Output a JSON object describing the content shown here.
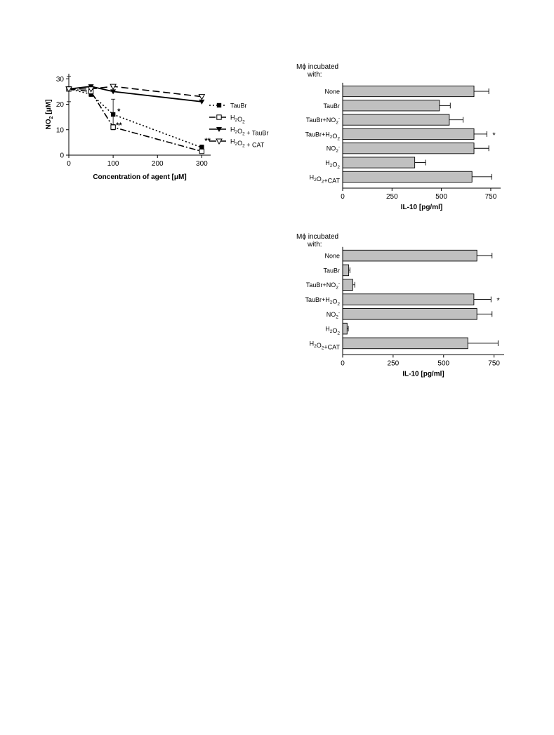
{
  "chart_data": [
    {
      "type": "line",
      "xlabel": "Concentration of agent [μM]",
      "ylabel": "NO2 [μM]",
      "ylabel_main": "NO",
      "ylabel_sub": "2",
      "ylabel_unit": " [μM]",
      "xlim": [
        0,
        320
      ],
      "ylim": [
        0,
        32
      ],
      "xticks": [
        "0",
        "100",
        "200",
        "300"
      ],
      "yticks": [
        "0",
        "10",
        "20",
        "30"
      ],
      "legend_position": "right",
      "series": [
        {
          "name": "TauBr",
          "label_parts": [
            [
              "TauBr",
              ""
            ]
          ],
          "marker": "square-filled",
          "dash": "2,3",
          "x": [
            0,
            50,
            100,
            300
          ],
          "y": [
            26,
            24,
            16,
            3
          ],
          "err": [
            5,
            1,
            6,
            1
          ],
          "annotations": [
            "",
            "",
            "*",
            "**"
          ]
        },
        {
          "name": "H2O2",
          "label_parts": [
            [
              "H",
              "2"
            ],
            [
              "O",
              "2"
            ]
          ],
          "marker": "square-open",
          "dash": "9,3,2,3",
          "x": [
            0,
            50,
            100,
            300
          ],
          "y": [
            26,
            25,
            11,
            1.5
          ],
          "err": [
            0,
            1,
            1,
            0.8
          ],
          "annotations": [
            "",
            "",
            "**",
            ""
          ]
        },
        {
          "name": "H2O2 + TauBr",
          "label_parts": [
            [
              "H",
              "2"
            ],
            [
              "O",
              "2"
            ],
            [
              " + TauBr",
              ""
            ]
          ],
          "marker": "triangle-down-filled",
          "dash": "",
          "x": [
            0,
            50,
            100,
            300
          ],
          "y": [
            26,
            27,
            25,
            21
          ],
          "err": [
            0,
            0,
            0,
            0
          ],
          "annotations": [
            "",
            "",
            "",
            ""
          ]
        },
        {
          "name": "H2O2 + CAT",
          "label_parts": [
            [
              "H",
              "2"
            ],
            [
              "O",
              "2"
            ],
            [
              " + CAT",
              ""
            ]
          ],
          "marker": "triangle-down-open",
          "dash": "10,5",
          "x": [
            0,
            50,
            100,
            300
          ],
          "y": [
            26,
            26,
            27,
            23
          ],
          "err": [
            0,
            0,
            0,
            0
          ],
          "annotations": [
            "",
            "",
            "",
            ""
          ]
        }
      ]
    },
    {
      "type": "bar",
      "orientation": "horizontal",
      "title_lines": [
        "Mϕ incubated",
        "with:"
      ],
      "xlabel": "IL-10 [pg/ml]",
      "xlim": [
        0,
        800
      ],
      "xticks": [
        "0",
        "250",
        "500",
        "750"
      ],
      "categories": [
        "None",
        "TauBr",
        "TauBr+NO2-",
        "TauBr+H2O2",
        "NO2-",
        "H2O2",
        "H2O2+CAT"
      ],
      "category_parts": [
        [
          [
            "None",
            "",
            ""
          ]
        ],
        [
          [
            "TauBr",
            "",
            ""
          ]
        ],
        [
          [
            "TauBr+NO",
            "",
            ""
          ],
          [
            "",
            "2",
            "-"
          ]
        ],
        [
          [
            "TauBr+H",
            "",
            ""
          ],
          [
            "",
            "2",
            ""
          ],
          [
            "O",
            "",
            ""
          ],
          [
            "",
            "2",
            ""
          ]
        ],
        [
          [
            "NO",
            "",
            ""
          ],
          [
            "",
            "2",
            "-"
          ]
        ],
        [
          [
            "H",
            "",
            ""
          ],
          [
            "",
            "2",
            ""
          ],
          [
            "O",
            "",
            ""
          ],
          [
            "",
            "2",
            ""
          ]
        ],
        [
          [
            "H",
            "",
            ""
          ],
          [
            "",
            "2",
            ""
          ],
          [
            "O",
            "",
            ""
          ],
          [
            "",
            "2",
            ""
          ],
          [
            "+CAT",
            "",
            ""
          ]
        ]
      ],
      "values": [
        665,
        490,
        540,
        665,
        665,
        365,
        655
      ],
      "errors": [
        75,
        55,
        70,
        65,
        75,
        55,
        100
      ],
      "annotations": [
        "",
        "",
        "",
        "*",
        "",
        "",
        ""
      ],
      "bar_color": "#c0c0c0"
    },
    {
      "type": "bar",
      "orientation": "horizontal",
      "title_lines": [
        "Mϕ incubated",
        "with:"
      ],
      "xlabel": "IL-10 [pg/ml]",
      "xlim": [
        0,
        800
      ],
      "xticks": [
        "0",
        "250",
        "500",
        "750"
      ],
      "categories": [
        "None",
        "TauBr",
        "TauBr+NO2-",
        "TauBr+H2O2",
        "NO2-",
        "H2O2",
        "H2O2+CAT"
      ],
      "category_parts": [
        [
          [
            "None",
            "",
            ""
          ]
        ],
        [
          [
            "TauBr",
            "",
            ""
          ]
        ],
        [
          [
            "TauBr+NO",
            "",
            ""
          ],
          [
            "",
            "2",
            "-"
          ]
        ],
        [
          [
            "TauBr+H",
            "",
            ""
          ],
          [
            "",
            "2",
            ""
          ],
          [
            "O",
            "",
            ""
          ],
          [
            "",
            "2",
            ""
          ]
        ],
        [
          [
            "NO",
            "",
            ""
          ],
          [
            "",
            "2",
            "-"
          ]
        ],
        [
          [
            "H",
            "",
            ""
          ],
          [
            "",
            "2",
            ""
          ],
          [
            "O",
            "",
            ""
          ],
          [
            "",
            "2",
            ""
          ]
        ],
        [
          [
            "H",
            "",
            ""
          ],
          [
            "",
            "2",
            ""
          ],
          [
            "O",
            "",
            ""
          ],
          [
            "",
            "2",
            ""
          ],
          [
            "+CAT",
            "",
            ""
          ]
        ]
      ],
      "values": [
        665,
        30,
        50,
        650,
        665,
        22,
        620
      ],
      "errors": [
        75,
        6,
        10,
        85,
        75,
        6,
        150
      ],
      "annotations": [
        "",
        "",
        "",
        "*",
        "",
        "",
        ""
      ],
      "bar_color": "#c0c0c0"
    }
  ]
}
